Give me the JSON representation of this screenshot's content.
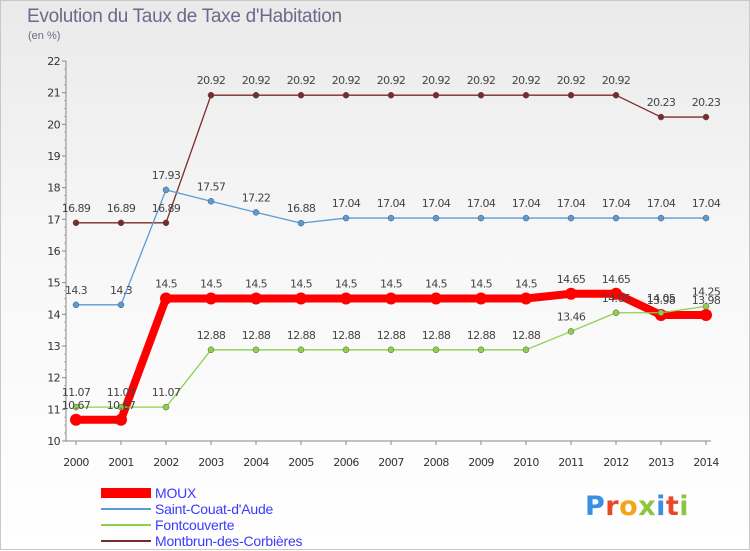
{
  "title": "Evolution du Taux de Taxe d'Habitation",
  "subtitle": "(en %)",
  "logo_text": "Proxiti",
  "logo_colors": [
    "#3a8ee6",
    "#e8472a",
    "#f2a51b",
    "#8cc63f",
    "#3a8ee6",
    "#e8472a",
    "#8cc63f"
  ],
  "chart_data": {
    "type": "line",
    "title": "Evolution du Taux de Taxe d'Habitation",
    "ylabel": "(en %)",
    "xlabel": "",
    "x": [
      "2000",
      "2001",
      "2002",
      "2003",
      "2004",
      "2005",
      "2006",
      "2007",
      "2008",
      "2009",
      "2010",
      "2011",
      "2012",
      "2013",
      "2014"
    ],
    "ylim": [
      10,
      22
    ],
    "yticks": [
      10,
      11,
      12,
      13,
      14,
      15,
      16,
      17,
      18,
      19,
      20,
      21,
      22
    ],
    "grid": false,
    "legend_position": "bottom-left",
    "series": [
      {
        "name": "MOUX",
        "color": "#ff0000",
        "values": [
          10.67,
          10.67,
          14.5,
          14.5,
          14.5,
          14.5,
          14.5,
          14.5,
          14.5,
          14.5,
          14.5,
          14.65,
          14.65,
          13.98,
          13.98
        ],
        "labels": [
          "10.67",
          "10.67",
          "14.5",
          "14.5",
          "14.5",
          "14.5",
          "14.5",
          "14.5",
          "14.5",
          "14.5",
          "14.5",
          "14.65",
          "14.65",
          "13.98",
          "13.98"
        ]
      },
      {
        "name": "Saint-Couat-d'Aude",
        "color": "#5b9bd5",
        "values": [
          14.3,
          14.3,
          17.93,
          17.57,
          17.22,
          16.88,
          17.04,
          17.04,
          17.04,
          17.04,
          17.04,
          17.04,
          17.04,
          17.04,
          17.04
        ],
        "labels": [
          "14.3",
          "14.3",
          "17.93",
          "17.57",
          "17.22",
          "16.88",
          "17.04",
          "17.04",
          "17.04",
          "17.04",
          "17.04",
          "17.04",
          "17.04",
          "17.04",
          "17.04"
        ]
      },
      {
        "name": "Fontcouverte",
        "color": "#8ed04a",
        "values": [
          11.07,
          11.07,
          11.07,
          12.88,
          12.88,
          12.88,
          12.88,
          12.88,
          12.88,
          12.88,
          12.88,
          13.46,
          14.05,
          14.05,
          14.25
        ],
        "labels": [
          "11.07",
          "11.07",
          "11.07",
          "12.88",
          "12.88",
          "12.88",
          "12.88",
          "12.88",
          "12.88",
          "12.88",
          "12.88",
          "13.46",
          "14.05",
          "14.05",
          "14.25"
        ]
      },
      {
        "name": "Montbrun-des-Corbières",
        "color": "#7a2a2a",
        "values": [
          16.89,
          16.89,
          16.89,
          20.92,
          20.92,
          20.92,
          20.92,
          20.92,
          20.92,
          20.92,
          20.92,
          20.92,
          20.92,
          20.23,
          20.23
        ],
        "labels": [
          "16.89",
          "16.89",
          "16.89",
          "20.92",
          "20.92",
          "20.92",
          "20.92",
          "20.92",
          "20.92",
          "20.92",
          "20.92",
          "20.92",
          "20.92",
          "20.23",
          "20.23"
        ]
      }
    ]
  }
}
